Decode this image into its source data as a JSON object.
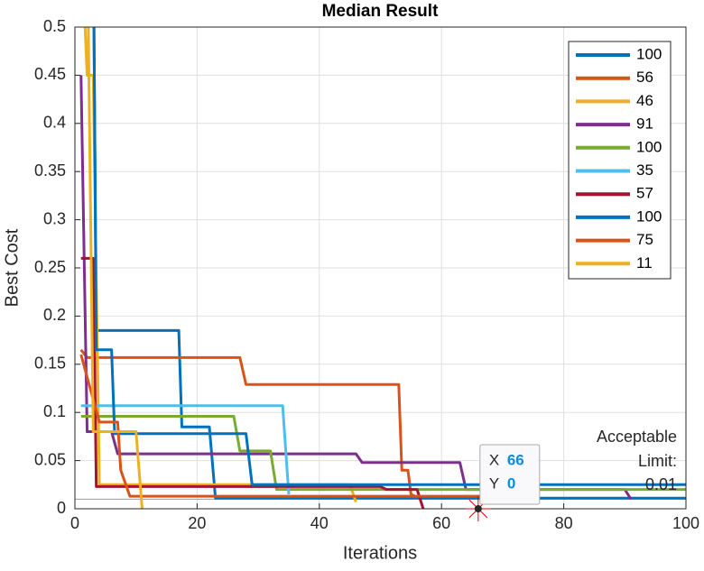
{
  "chart_data": {
    "type": "line",
    "title": "Median Result",
    "x_label": "Iterations",
    "y_label": "Best Cost",
    "xlim": [
      0,
      100
    ],
    "ylim": [
      0,
      0.5
    ],
    "xticks": [
      0,
      20,
      40,
      60,
      80,
      100
    ],
    "yticks": [
      0,
      0.05,
      0.1,
      0.15,
      0.2,
      0.25,
      0.3,
      0.35,
      0.4,
      0.45,
      0.5
    ],
    "grid": true,
    "legend": "top-right",
    "series": [
      {
        "name": "100",
        "color": "#0072BD",
        "x": [
          3,
          3.5,
          17,
          17.5,
          22,
          23,
          100
        ],
        "values": [
          0.6,
          0.185,
          0.185,
          0.085,
          0.085,
          0.011,
          0.011
        ]
      },
      {
        "name": "56",
        "color": "#D95319",
        "x": [
          1,
          2,
          27,
          28,
          53,
          53.5,
          54.5,
          55,
          56
        ],
        "values": [
          0.165,
          0.157,
          0.157,
          0.129,
          0.129,
          0.04,
          0.04,
          0.015,
          0.012
        ]
      },
      {
        "name": "46",
        "color": "#EDB120",
        "x": [
          1,
          2,
          3,
          4,
          45,
          46
        ],
        "values": [
          0.6,
          0.45,
          0.45,
          0.025,
          0.025,
          0.007
        ]
      },
      {
        "name": "91",
        "color": "#7E2F8E",
        "x": [
          1,
          2,
          6,
          7,
          46,
          47,
          63,
          64,
          90,
          91
        ],
        "values": [
          0.45,
          0.08,
          0.08,
          0.057,
          0.057,
          0.048,
          0.048,
          0.02,
          0.02,
          0.01
        ]
      },
      {
        "name": "100",
        "color": "#77AC30",
        "x": [
          1,
          26,
          27,
          32,
          33,
          100
        ],
        "values": [
          0.096,
          0.096,
          0.06,
          0.06,
          0.02,
          0.02
        ]
      },
      {
        "name": "35",
        "color": "#4DBEEE",
        "x": [
          1,
          34,
          35
        ],
        "values": [
          0.107,
          0.107,
          0.015
        ]
      },
      {
        "name": "57",
        "color": "#A2142F",
        "x": [
          1,
          3,
          3.5,
          50,
          51,
          56,
          57
        ],
        "values": [
          0.26,
          0.26,
          0.023,
          0.023,
          0.02,
          0.02,
          0
        ]
      },
      {
        "name": "100",
        "color": "#0072BD",
        "x": [
          3,
          3.5,
          6,
          6.5,
          28,
          29,
          100
        ],
        "values": [
          0.6,
          0.165,
          0.165,
          0.078,
          0.078,
          0.025,
          0.025
        ]
      },
      {
        "name": "75",
        "color": "#D95319",
        "x": [
          1,
          4,
          7,
          7.5,
          9,
          75
        ],
        "values": [
          0.16,
          0.09,
          0.09,
          0.04,
          0.013,
          0.013
        ]
      },
      {
        "name": "11",
        "color": "#EDB120",
        "x": [
          2,
          3,
          10,
          11
        ],
        "values": [
          0.6,
          0.08,
          0.08,
          0
        ]
      }
    ],
    "limit": {
      "value": 0.01,
      "label_lines": [
        "Acceptable",
        "Limit:"
      ]
    },
    "datatip": {
      "x_label": "X",
      "x": 66,
      "y_label": "Y",
      "y": 0
    }
  }
}
